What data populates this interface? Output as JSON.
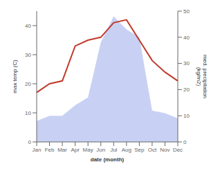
{
  "chart_data": {
    "type": "line",
    "xlabel": "date (month)",
    "ylabel": "max temp (C)",
    "y2label": "med. precipitation\n(kg/m2)",
    "categories": [
      "Jan",
      "Feb",
      "Mar",
      "Apr",
      "May",
      "Jun",
      "Jul",
      "Aug",
      "Sep",
      "Oct",
      "Nov",
      "Dec"
    ],
    "series": [
      {
        "type": "area",
        "axis": "y2",
        "color": "#b0bef0",
        "values": [
          8,
          10,
          10,
          14,
          17,
          38,
          48,
          43,
          40,
          12,
          11,
          9
        ]
      },
      {
        "type": "line",
        "axis": "y",
        "color": "#c0392b",
        "values": [
          17,
          20,
          21,
          33,
          35,
          36,
          41,
          42,
          35,
          28,
          24,
          21
        ]
      }
    ],
    "ylim": [
      0,
      45
    ],
    "yticks": [
      0,
      10,
      20,
      30,
      40
    ],
    "y2lim": [
      0,
      50
    ],
    "y2ticks": [
      0,
      10,
      20,
      30,
      40,
      50
    ],
    "grid": false
  }
}
